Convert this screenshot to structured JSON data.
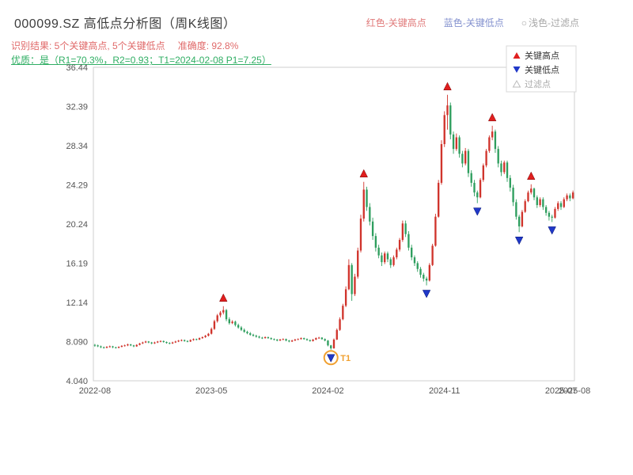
{
  "header": {
    "title": "000099.SZ 高低点分析图（周K线图）",
    "legend": [
      {
        "label": "红色-关键高点",
        "color": "#e07a7a"
      },
      {
        "label": "蓝色-关键低点",
        "color": "#8492cf"
      },
      {
        "marker": "○",
        "label": "浅色-过滤点",
        "color": "#a8a8a8"
      }
    ],
    "result_text": "识别结果: 5个关键高点, 5个关键低点",
    "accuracy_text": "准确度: 92.8%",
    "quality_line": "优质：是（R1=70.3%，R2=0.93；T1=2024-02-08 P1=7.25）"
  },
  "chart_legend": {
    "high": "关键高点",
    "low": "关键低点",
    "filtered": "过滤点"
  },
  "colors": {
    "up": "#d0342c",
    "down": "#2e9e5e",
    "key_high": "#e01f1f",
    "key_low": "#2038c8",
    "t1": "#f0a030",
    "result_text": "#e06a6a",
    "quality_text": "#2fae63"
  },
  "chart_data": {
    "type": "candlestick",
    "title": "000099.SZ 高低点分析图（周K线图）",
    "timeframe": "weekly",
    "grid": false,
    "y_ticks": [
      "36.44",
      "32.39",
      "28.34",
      "24.29",
      "20.24",
      "16.19",
      "12.14",
      "8.090",
      "4.040"
    ],
    "y_range": [
      4.04,
      36.44
    ],
    "x_ticks": [
      {
        "index": 0,
        "label": "2022-08"
      },
      {
        "index": 39,
        "label": "2023-05"
      },
      {
        "index": 78,
        "label": "2024-02"
      },
      {
        "index": 117,
        "label": "2024-11"
      },
      {
        "index": 156,
        "label": "2025-07"
      }
    ],
    "x_end_label": "2025-08",
    "candles": [
      [
        7.75,
        7.85,
        7.55,
        7.7
      ],
      [
        7.7,
        7.78,
        7.52,
        7.6
      ],
      [
        7.6,
        7.68,
        7.42,
        7.5
      ],
      [
        7.5,
        7.58,
        7.38,
        7.45
      ],
      [
        7.45,
        7.62,
        7.4,
        7.55
      ],
      [
        7.55,
        7.68,
        7.48,
        7.6
      ],
      [
        7.6,
        7.65,
        7.42,
        7.5
      ],
      [
        7.5,
        7.56,
        7.38,
        7.45
      ],
      [
        7.45,
        7.6,
        7.4,
        7.55
      ],
      [
        7.55,
        7.72,
        7.5,
        7.65
      ],
      [
        7.65,
        7.78,
        7.58,
        7.7
      ],
      [
        7.7,
        7.88,
        7.62,
        7.8
      ],
      [
        7.8,
        7.85,
        7.62,
        7.7
      ],
      [
        7.7,
        7.75,
        7.52,
        7.6
      ],
      [
        7.6,
        7.82,
        7.55,
        7.75
      ],
      [
        7.75,
        7.96,
        7.7,
        7.9
      ],
      [
        7.9,
        8.08,
        7.84,
        8.0
      ],
      [
        8.0,
        8.18,
        7.94,
        8.1
      ],
      [
        8.1,
        8.15,
        7.92,
        8.0
      ],
      [
        8.0,
        8.06,
        7.82,
        7.9
      ],
      [
        7.9,
        8.08,
        7.85,
        8.0
      ],
      [
        8.0,
        8.16,
        7.94,
        8.1
      ],
      [
        8.1,
        8.22,
        8.02,
        8.15
      ],
      [
        8.15,
        8.2,
        7.98,
        8.05
      ],
      [
        8.05,
        8.1,
        7.88,
        7.95
      ],
      [
        7.95,
        8.02,
        7.82,
        7.9
      ],
      [
        7.9,
        8.08,
        7.85,
        8.0
      ],
      [
        8.0,
        8.18,
        7.95,
        8.1
      ],
      [
        8.1,
        8.26,
        8.04,
        8.2
      ],
      [
        8.2,
        8.32,
        8.12,
        8.25
      ],
      [
        8.25,
        8.3,
        8.08,
        8.15
      ],
      [
        8.15,
        8.22,
        8.02,
        8.1
      ],
      [
        8.1,
        8.32,
        8.05,
        8.25
      ],
      [
        8.25,
        8.42,
        8.18,
        8.35
      ],
      [
        8.35,
        8.4,
        8.22,
        8.3
      ],
      [
        8.3,
        8.52,
        8.25,
        8.45
      ],
      [
        8.45,
        8.62,
        8.38,
        8.55
      ],
      [
        8.55,
        8.78,
        8.48,
        8.7
      ],
      [
        8.7,
        8.98,
        8.62,
        8.9
      ],
      [
        8.9,
        9.55,
        8.82,
        9.4
      ],
      [
        9.4,
        10.35,
        9.3,
        10.2
      ],
      [
        10.2,
        10.95,
        10.05,
        10.8
      ],
      [
        10.8,
        11.25,
        10.6,
        11.1
      ],
      [
        11.1,
        11.75,
        10.9,
        11.35
      ],
      [
        11.35,
        11.45,
        10.2,
        10.4
      ],
      [
        10.4,
        10.6,
        9.85,
        10.0
      ],
      [
        10.0,
        10.3,
        9.9,
        10.15
      ],
      [
        10.15,
        10.25,
        9.65,
        9.8
      ],
      [
        9.8,
        9.95,
        9.42,
        9.55
      ],
      [
        9.55,
        9.7,
        9.18,
        9.3
      ],
      [
        9.3,
        9.45,
        9.0,
        9.1
      ],
      [
        9.1,
        9.22,
        8.85,
        8.95
      ],
      [
        8.95,
        9.08,
        8.7,
        8.8
      ],
      [
        8.8,
        8.9,
        8.6,
        8.7
      ],
      [
        8.7,
        8.8,
        8.5,
        8.6
      ],
      [
        8.6,
        8.7,
        8.42,
        8.5
      ],
      [
        8.5,
        8.58,
        8.36,
        8.45
      ],
      [
        8.45,
        8.62,
        8.4,
        8.55
      ],
      [
        8.55,
        8.6,
        8.38,
        8.45
      ],
      [
        8.45,
        8.52,
        8.28,
        8.35
      ],
      [
        8.35,
        8.42,
        8.22,
        8.3
      ],
      [
        8.3,
        8.36,
        8.12,
        8.2
      ],
      [
        8.2,
        8.38,
        8.15,
        8.3
      ],
      [
        8.3,
        8.42,
        8.25,
        8.35
      ],
      [
        8.35,
        8.4,
        8.12,
        8.2
      ],
      [
        8.2,
        8.26,
        8.02,
        8.1
      ],
      [
        8.1,
        8.28,
        8.05,
        8.2
      ],
      [
        8.2,
        8.38,
        8.15,
        8.3
      ],
      [
        8.3,
        8.42,
        8.25,
        8.35
      ],
      [
        8.35,
        8.52,
        8.3,
        8.45
      ],
      [
        8.45,
        8.5,
        8.28,
        8.35
      ],
      [
        8.35,
        8.42,
        8.18,
        8.25
      ],
      [
        8.25,
        8.3,
        8.08,
        8.15
      ],
      [
        8.15,
        8.36,
        8.1,
        8.3
      ],
      [
        8.3,
        8.52,
        8.25,
        8.45
      ],
      [
        8.45,
        8.58,
        8.38,
        8.5
      ],
      [
        8.5,
        8.55,
        8.28,
        8.35
      ],
      [
        8.35,
        8.42,
        8.12,
        8.2
      ],
      [
        8.2,
        8.25,
        7.6,
        7.7
      ],
      [
        7.7,
        7.75,
        7.25,
        7.4
      ],
      [
        7.4,
        8.42,
        7.35,
        8.3
      ],
      [
        8.3,
        9.45,
        8.25,
        9.3
      ],
      [
        9.3,
        10.6,
        9.2,
        10.4
      ],
      [
        10.4,
        12.0,
        10.3,
        11.8
      ],
      [
        11.8,
        13.8,
        11.65,
        13.5
      ],
      [
        13.5,
        16.6,
        13.4,
        16.0
      ],
      [
        16.0,
        16.2,
        12.3,
        13.0
      ],
      [
        13.0,
        15.1,
        12.8,
        14.8
      ],
      [
        14.8,
        17.8,
        14.6,
        17.5
      ],
      [
        17.5,
        21.2,
        17.3,
        20.8
      ],
      [
        20.8,
        24.6,
        20.5,
        23.8
      ],
      [
        23.8,
        24.1,
        21.6,
        22.0
      ],
      [
        22.0,
        22.4,
        20.1,
        20.5
      ],
      [
        20.5,
        20.9,
        18.6,
        19.0
      ],
      [
        19.0,
        19.3,
        17.4,
        17.8
      ],
      [
        17.8,
        18.1,
        16.7,
        17.0
      ],
      [
        17.0,
        17.3,
        15.9,
        16.3
      ],
      [
        16.3,
        17.4,
        16.1,
        17.2
      ],
      [
        17.2,
        17.4,
        16.3,
        16.6
      ],
      [
        16.6,
        16.8,
        15.7,
        16.0
      ],
      [
        16.0,
        17.0,
        15.85,
        16.8
      ],
      [
        16.8,
        17.8,
        16.6,
        17.6
      ],
      [
        17.6,
        18.8,
        17.4,
        18.6
      ],
      [
        18.6,
        20.6,
        18.4,
        20.3
      ],
      [
        20.3,
        20.6,
        18.9,
        19.2
      ],
      [
        19.2,
        19.5,
        17.5,
        17.8
      ],
      [
        17.8,
        18.1,
        16.5,
        16.8
      ],
      [
        16.8,
        17.0,
        15.9,
        16.2
      ],
      [
        16.2,
        16.4,
        15.3,
        15.6
      ],
      [
        15.6,
        15.8,
        14.7,
        15.0
      ],
      [
        15.0,
        15.2,
        14.3,
        14.6
      ],
      [
        14.6,
        14.8,
        13.9,
        14.4
      ],
      [
        14.4,
        16.2,
        14.3,
        16.0
      ],
      [
        16.0,
        18.2,
        15.9,
        18.0
      ],
      [
        18.0,
        21.3,
        17.9,
        21.0
      ],
      [
        21.0,
        24.8,
        20.9,
        24.5
      ],
      [
        24.5,
        28.9,
        24.3,
        28.5
      ],
      [
        28.5,
        31.9,
        28.2,
        31.5
      ],
      [
        31.5,
        33.6,
        30.0,
        32.5
      ],
      [
        32.5,
        32.8,
        29.0,
        29.5
      ],
      [
        29.5,
        29.8,
        27.5,
        28.0
      ],
      [
        28.0,
        29.6,
        27.8,
        29.2
      ],
      [
        29.2,
        29.4,
        27.1,
        27.5
      ],
      [
        27.5,
        27.8,
        26.1,
        26.5
      ],
      [
        26.5,
        28.1,
        26.3,
        27.8
      ],
      [
        27.8,
        28.0,
        25.1,
        25.5
      ],
      [
        25.5,
        25.8,
        24.1,
        24.5
      ],
      [
        24.5,
        24.8,
        23.1,
        23.5
      ],
      [
        23.5,
        23.7,
        22.4,
        23.0
      ],
      [
        23.0,
        25.0,
        22.9,
        24.8
      ],
      [
        24.8,
        26.5,
        24.6,
        26.3
      ],
      [
        26.3,
        28.0,
        26.1,
        27.8
      ],
      [
        27.8,
        29.4,
        27.6,
        29.2
      ],
      [
        29.2,
        30.4,
        28.9,
        29.8
      ],
      [
        29.8,
        30.0,
        27.6,
        28.0
      ],
      [
        28.0,
        28.3,
        26.1,
        26.5
      ],
      [
        26.5,
        26.8,
        25.2,
        25.6
      ],
      [
        25.6,
        26.8,
        25.4,
        26.6
      ],
      [
        26.6,
        26.8,
        24.6,
        25.0
      ],
      [
        25.0,
        25.3,
        23.6,
        24.0
      ],
      [
        24.0,
        24.3,
        22.1,
        22.5
      ],
      [
        22.5,
        22.8,
        20.7,
        21.0
      ],
      [
        21.0,
        21.2,
        19.4,
        20.0
      ],
      [
        20.0,
        21.7,
        19.9,
        21.5
      ],
      [
        21.5,
        22.8,
        21.4,
        22.6
      ],
      [
        22.6,
        23.7,
        22.5,
        23.5
      ],
      [
        23.5,
        24.35,
        23.3,
        23.9
      ],
      [
        23.9,
        24.0,
        22.7,
        23.0
      ],
      [
        23.0,
        23.2,
        21.9,
        22.2
      ],
      [
        22.2,
        23.0,
        22.0,
        22.8
      ],
      [
        22.8,
        23.0,
        21.7,
        22.0
      ],
      [
        22.0,
        22.2,
        21.1,
        21.4
      ],
      [
        21.4,
        21.6,
        20.6,
        21.0
      ],
      [
        21.0,
        21.2,
        20.45,
        20.9
      ],
      [
        20.9,
        22.0,
        20.8,
        21.8
      ],
      [
        21.8,
        22.6,
        21.6,
        22.4
      ],
      [
        22.4,
        22.6,
        21.7,
        22.0
      ],
      [
        22.0,
        23.0,
        21.9,
        22.8
      ],
      [
        22.8,
        23.4,
        22.6,
        23.2
      ],
      [
        23.2,
        23.4,
        22.6,
        22.9
      ],
      [
        22.9,
        23.7,
        22.8,
        23.5
      ]
    ],
    "key_highs": [
      {
        "index": 43,
        "price": 11.75
      },
      {
        "index": 90,
        "price": 24.6
      },
      {
        "index": 118,
        "price": 33.6
      },
      {
        "index": 133,
        "price": 30.4
      },
      {
        "index": 146,
        "price": 24.35
      }
    ],
    "key_lows": [
      {
        "index": 79,
        "price": 7.25
      },
      {
        "index": 111,
        "price": 13.9
      },
      {
        "index": 128,
        "price": 22.4
      },
      {
        "index": 142,
        "price": 19.4
      },
      {
        "index": 153,
        "price": 20.45
      }
    ],
    "t1": {
      "index": 79,
      "price": 7.25,
      "label": "T1"
    }
  }
}
